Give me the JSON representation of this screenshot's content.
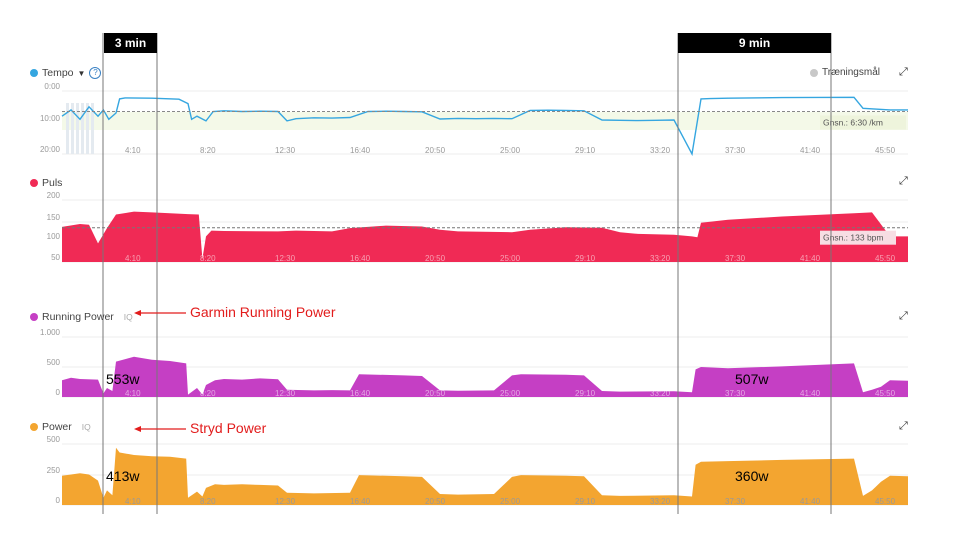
{
  "annotations": {
    "callout_3min": "3 min",
    "callout_9min": "9 min",
    "garmin_label": "Garmin Running Power",
    "stryd_label": "Stryd Power"
  },
  "panels": {
    "tempo": {
      "title": "Tempo",
      "color": "#35a6e0",
      "goal_legend": "Træningsmål",
      "y_ticks": [
        "0:00",
        "10:00",
        "20:00"
      ],
      "avg_label": "Gnsn.: 6:30 /km"
    },
    "puls": {
      "title": "Puls",
      "color": "#f02a55",
      "y_ticks": [
        "200",
        "150",
        "100",
        "50"
      ],
      "avg_label": "Gnsn.: 133 bpm"
    },
    "running_power": {
      "title": "Running Power",
      "iq": "IQ",
      "color": "#c53fc4",
      "y_ticks": [
        "1.000",
        "500",
        "0"
      ],
      "value_3min": "553w",
      "value_9min": "507w"
    },
    "power": {
      "title": "Power",
      "iq": "IQ",
      "color": "#f3a530",
      "y_ticks": [
        "500",
        "250",
        "0"
      ],
      "value_3min": "413w",
      "value_9min": "360w"
    }
  },
  "chart_data": [
    {
      "type": "line",
      "name": "Tempo",
      "x_ticks": [
        "4:10",
        "8:20",
        "12:30",
        "16:40",
        "20:50",
        "25:00",
        "29:10",
        "33:20",
        "37:30",
        "41:40",
        "45:50"
      ],
      "x_unit": "minutes",
      "y_unit": "min/km",
      "y_inverted": true,
      "ylim_min_per_km": [
        0,
        20
      ],
      "average_min_per_km": 6.5,
      "series": [
        {
          "name": "Tempo",
          "x": [
            0,
            0.5,
            1,
            1.5,
            2,
            2.3,
            2.6,
            3,
            3.2,
            3.5,
            5,
            6.5,
            7,
            7.2,
            7.5,
            8,
            8.4,
            9,
            10,
            11,
            12,
            12.5,
            13,
            14,
            15,
            16,
            17,
            18,
            19,
            20,
            21,
            22,
            23,
            24,
            25,
            26,
            27,
            28,
            29,
            30,
            31,
            32,
            33,
            34,
            35,
            35.5,
            36,
            37,
            40,
            44,
            44.5,
            46,
            47
          ],
          "y": [
            8,
            6,
            9,
            5,
            8,
            6,
            9,
            7,
            2.5,
            2.2,
            2.3,
            2.6,
            4,
            9,
            8,
            9.5,
            6.5,
            6.3,
            6.5,
            6.4,
            6.5,
            9.5,
            8.8,
            8.5,
            8.6,
            8.4,
            6.5,
            6.4,
            6.5,
            6.6,
            8.9,
            8.7,
            8.8,
            8.7,
            8.8,
            6.2,
            6.1,
            6.2,
            6.3,
            9.2,
            9.3,
            9.4,
            9.3,
            9.2,
            20,
            2.5,
            2.4,
            2.3,
            2.1,
            2,
            5.5,
            6,
            6
          ]
        }
      ]
    },
    {
      "type": "area",
      "name": "Puls",
      "x_unit": "minutes",
      "y_unit": "bpm",
      "ylim": [
        50,
        200
      ],
      "average": 133,
      "series": [
        {
          "name": "Puls",
          "x": [
            0,
            1,
            1.5,
            2,
            2.5,
            3,
            4,
            5,
            6,
            7,
            7.6,
            7.8,
            8,
            8.3,
            9,
            12,
            13,
            15,
            16,
            18,
            20,
            21,
            22,
            25,
            26,
            28,
            30,
            31,
            32,
            34,
            35,
            35.3,
            35.5,
            37,
            40,
            44,
            45,
            46,
            47
          ],
          "y": [
            135,
            142,
            140,
            95,
            132,
            165,
            172,
            170,
            168,
            166,
            165,
            58,
            112,
            126,
            125,
            124,
            126,
            124,
            132,
            138,
            136,
            128,
            124,
            122,
            128,
            134,
            133,
            122,
            118,
            116,
            112,
            110,
            145,
            152,
            160,
            168,
            170,
            112,
            112
          ]
        }
      ]
    },
    {
      "type": "area",
      "name": "Running Power",
      "x_unit": "minutes",
      "y_unit": "W",
      "ylim": [
        0,
        1000
      ],
      "series": [
        {
          "name": "Running Power",
          "x": [
            0,
            0.5,
            1,
            2,
            2.3,
            2.5,
            2.8,
            3,
            4,
            5,
            6,
            6.9,
            7,
            7.5,
            7.8,
            8,
            8.5,
            9,
            10,
            11,
            12,
            12.5,
            14,
            15,
            16,
            16.5,
            19,
            20,
            21,
            22,
            24,
            25,
            25.5,
            28,
            29,
            30,
            31,
            34,
            35,
            35.2,
            35.5,
            37,
            40,
            44,
            44.5,
            45,
            45.5,
            46,
            47
          ],
          "y": [
            280,
            320,
            300,
            290,
            60,
            150,
            100,
            590,
            670,
            620,
            600,
            560,
            40,
            150,
            40,
            200,
            280,
            300,
            290,
            310,
            295,
            120,
            110,
            115,
            110,
            380,
            360,
            350,
            110,
            105,
            110,
            360,
            380,
            370,
            360,
            100,
            90,
            95,
            80,
            460,
            500,
            480,
            510,
            560,
            80,
            120,
            170,
            280,
            270
          ]
        }
      ]
    },
    {
      "type": "area",
      "name": "Power",
      "x_ticks": [
        "4:10",
        "8:20",
        "12:30",
        "16:40",
        "20:50",
        "25:00",
        "29:10",
        "33:20",
        "37:30",
        "41:40",
        "45:50"
      ],
      "x_unit": "minutes",
      "y_unit": "W",
      "ylim": [
        0,
        500
      ],
      "series": [
        {
          "name": "Power",
          "x": [
            0,
            1,
            1.5,
            2,
            2.3,
            2.5,
            2.8,
            3,
            3.2,
            4,
            5,
            6,
            6.9,
            7,
            7.5,
            7.8,
            8,
            8.5,
            9,
            10,
            11,
            12,
            12.5,
            14,
            16,
            16.5,
            19,
            20,
            21,
            22,
            24,
            25,
            25.5,
            28,
            29,
            30,
            31,
            34,
            35,
            35.2,
            35.5,
            37,
            40,
            44,
            44.5,
            45,
            45.5,
            46,
            47
          ],
          "y": [
            240,
            260,
            250,
            200,
            60,
            120,
            80,
            470,
            430,
            410,
            400,
            395,
            380,
            60,
            110,
            70,
            140,
            170,
            165,
            170,
            165,
            160,
            100,
            95,
            100,
            245,
            235,
            230,
            90,
            85,
            90,
            230,
            245,
            240,
            235,
            80,
            75,
            80,
            70,
            330,
            355,
            360,
            370,
            380,
            75,
            120,
            190,
            240,
            235
          ]
        }
      ]
    }
  ]
}
